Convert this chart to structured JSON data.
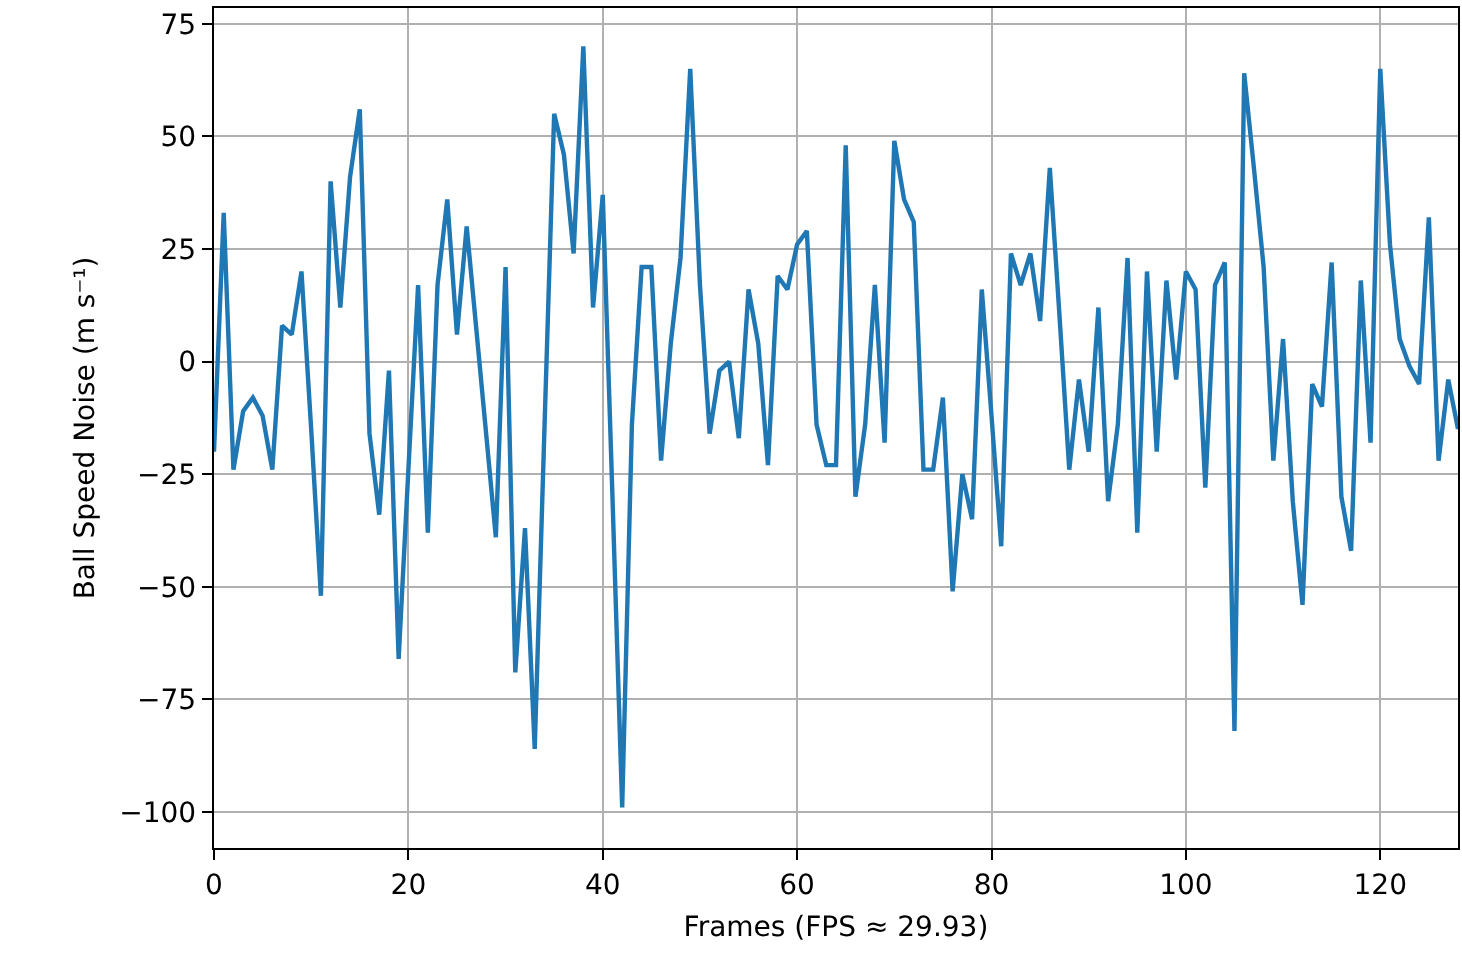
{
  "chart_data": {
    "type": "line",
    "xlabel": "Frames (FPS ≈ 29.93)",
    "ylabel": "Ball Speed Noise (m s⁻¹)",
    "x": [
      0,
      1,
      2,
      3,
      4,
      5,
      6,
      7,
      8,
      9,
      10,
      11,
      12,
      13,
      14,
      15,
      16,
      17,
      18,
      19,
      20,
      21,
      22,
      23,
      24,
      25,
      26,
      27,
      28,
      29,
      30,
      31,
      32,
      33,
      34,
      35,
      36,
      37,
      38,
      39,
      40,
      41,
      42,
      43,
      44,
      45,
      46,
      47,
      48,
      49,
      50,
      51,
      52,
      53,
      54,
      55,
      56,
      57,
      58,
      59,
      60,
      61,
      62,
      63,
      64,
      65,
      66,
      67,
      68,
      69,
      70,
      71,
      72,
      73,
      74,
      75,
      76,
      77,
      78,
      79,
      80,
      81,
      82,
      83,
      84,
      85,
      86,
      87,
      88,
      89,
      90,
      91,
      92,
      93,
      94,
      95,
      96,
      97,
      98,
      99,
      100,
      101,
      102,
      103,
      104,
      105,
      106,
      107,
      108,
      109,
      110,
      111,
      112,
      113,
      114,
      115,
      116,
      117,
      118,
      119,
      120,
      121,
      122,
      123,
      124,
      125,
      126,
      127,
      128
    ],
    "series": [
      {
        "color": "#1f77b4",
        "values": [
          -20,
          33,
          -24,
          -11,
          -8,
          -12,
          -24,
          8,
          6,
          20,
          -15,
          -52,
          40,
          12,
          41,
          56,
          -16,
          -34,
          -2,
          -66,
          -24,
          17,
          -38,
          17,
          36,
          6,
          30,
          7,
          -16,
          -39,
          21,
          -69,
          -37,
          -86,
          -15,
          55,
          46,
          24,
          70,
          12,
          37,
          -30,
          -99,
          -14,
          21,
          21,
          -22,
          4,
          23,
          65,
          17,
          -16,
          -2,
          0,
          -17,
          16,
          4,
          -23,
          19,
          16,
          26,
          29,
          -14,
          -23,
          -23,
          48,
          -30,
          -14,
          17,
          -18,
          49,
          36,
          31,
          -24,
          -24,
          -8,
          -51,
          -25,
          -35,
          16,
          -12,
          -41,
          24,
          17,
          24,
          9,
          43,
          10,
          -24,
          -4,
          -20,
          12,
          -31,
          -14,
          23,
          -38,
          20,
          -20,
          18,
          -4,
          20,
          16,
          -28,
          17,
          22,
          -82,
          64,
          43,
          21,
          -22,
          5,
          -31,
          -54,
          -5,
          -10,
          22,
          -30,
          -42,
          18,
          -18,
          65,
          26,
          5,
          -1,
          -5,
          32,
          -22,
          -4,
          -15
        ]
      }
    ],
    "xlim": [
      0,
      128
    ],
    "ylim": [
      -108,
      78.5
    ],
    "xticks": [
      0,
      20,
      40,
      60,
      80,
      100,
      120
    ],
    "yticks": [
      -100,
      -75,
      -50,
      -25,
      0,
      25,
      50,
      75
    ],
    "grid": true,
    "marker": "none",
    "line_style": "solid"
  }
}
